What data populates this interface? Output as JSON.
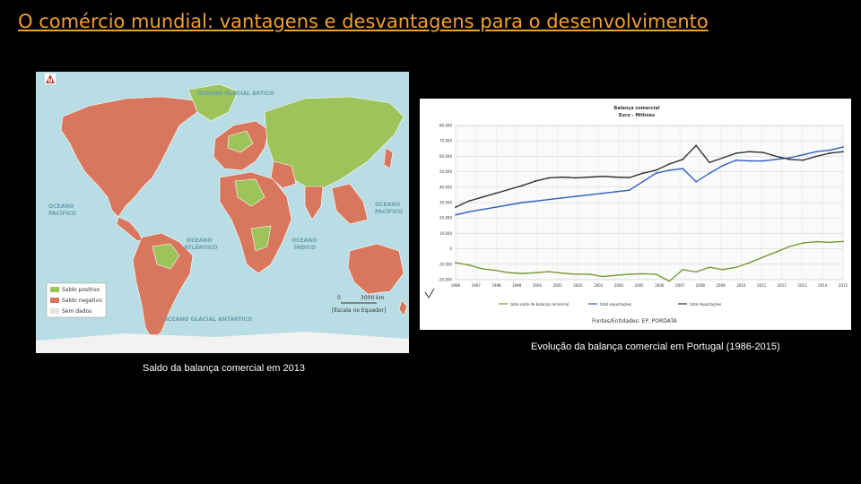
{
  "slide": {
    "title": "O comércio mundial: vantagens e desvantagens para o desenvolvimento",
    "map_caption": "Saldo da balança comercial em 2013",
    "chart_caption": "Evolução da balança comercial em Portugal (1986-2015)"
  },
  "map": {
    "badge": "N",
    "oceans": {
      "arctic": "OCEANO GLACIAL ÁRTICO",
      "pacific_left_1": "OCEANO",
      "pacific_left_2": "PACÍFICO",
      "pacific_right_1": "OCEANO",
      "pacific_right_2": "PACÍFICO",
      "atlantic_1": "OCEANO",
      "atlantic_2": "ATLÂNTICO",
      "indian_1": "OCEANO",
      "indian_2": "ÍNDICO",
      "antarctic": "OCEANO GLACIAL ANTÁRTICO"
    },
    "legend": [
      {
        "label": "Saldo positivo",
        "color": "#9cc45a"
      },
      {
        "label": "Saldo negativo",
        "color": "#d9775e"
      },
      {
        "label": "Sem dados",
        "color": "#e8e4dc"
      }
    ],
    "scale": {
      "zero": "0",
      "dist": "3000 km",
      "note": "[Escala no Equador]"
    },
    "colors": {
      "positive": "#9cc45a",
      "negative": "#d9775e",
      "nodata": "#e8e4dc",
      "ocean": "#b9dde4"
    }
  },
  "chart_header": {
    "title": "Balança comercial",
    "subtitle": "Euro - Milhões",
    "source": "Fontes/Entidades: EP, PORDATA"
  },
  "chart_data": {
    "type": "line",
    "title": "Balança comercial",
    "ylabel": "Euro - Milhões",
    "x": [
      "1986",
      "1987",
      "1988",
      "1989",
      "1990",
      "1991",
      "1992",
      "1993",
      "1994",
      "1995",
      "1996",
      "1997",
      "1998",
      "1999",
      "2000",
      "2001",
      "2002",
      "2003",
      "2004",
      "2005",
      "2006",
      "2007",
      "2008",
      "2009",
      "2010",
      "2011",
      "2012",
      "2013",
      "2014",
      "2015"
    ],
    "x_ticks": [
      "1996",
      "1997",
      "1998",
      "1999",
      "2000",
      "2001",
      "2002",
      "2003",
      "2004",
      "2005",
      "2006",
      "2007",
      "2008",
      "2009",
      "2010",
      "2011",
      "2012",
      "2013",
      "2014",
      "2015"
    ],
    "y_ticks": [
      "80.000",
      "70.000",
      "60.000",
      "50.000",
      "40.000",
      "30.000",
      "20.000",
      "10.000",
      "0",
      "-10.000",
      "-20.000"
    ],
    "ylim": [
      -20000,
      80000
    ],
    "series": [
      {
        "name": "total saldo da balança comercial",
        "color": "#7a9a3a",
        "values": [
          -9000,
          -10500,
          -13000,
          -14000,
          -15500,
          -16000,
          -15500,
          -14800,
          -15800,
          -16500,
          -16500,
          -18000,
          -17200,
          -16500,
          -16200,
          -16500,
          -21000,
          -13500,
          -15000,
          -12000,
          -13500,
          -12000,
          -9000,
          -5500,
          -2000,
          1500,
          3800,
          4600,
          4200,
          4800
        ]
      },
      {
        "name": "total exportações",
        "color": "#2a5fc0",
        "values": [
          22000,
          24000,
          25500,
          27000,
          28500,
          30000,
          31000,
          32000,
          33000,
          34000,
          35000,
          36000,
          37000,
          38000,
          43500,
          49000,
          51000,
          52000,
          43500,
          49000,
          54000,
          57500,
          57000,
          57000,
          58000,
          59000,
          61000,
          63000,
          64000,
          66000
        ]
      },
      {
        "name": "total importações",
        "color": "#333333",
        "values": [
          27000,
          31000,
          33500,
          36000,
          38500,
          41000,
          44000,
          46000,
          46500,
          46000,
          46500,
          47000,
          46500,
          46200,
          49000,
          51000,
          55000,
          58000,
          67000,
          56000,
          59000,
          62000,
          63000,
          62500,
          60000,
          58000,
          57500,
          60000,
          62000,
          63000
        ]
      }
    ],
    "legend": [
      "total saldo da balança comercial",
      "total exportações",
      "total importações"
    ],
    "legend_placement": "bottom"
  }
}
